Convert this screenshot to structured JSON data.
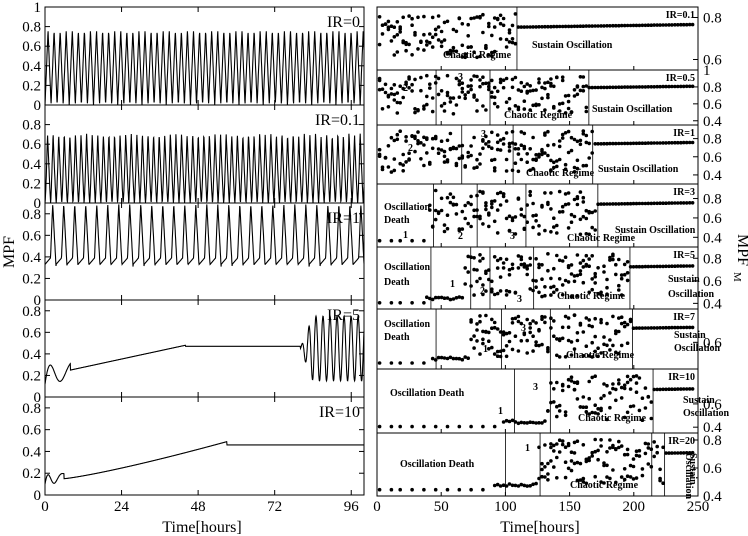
{
  "figure": {
    "left_ylabel": "MPF",
    "right_ylabel_main": "MPF",
    "right_ylabel_sub": "M",
    "left_xlabel": "Time[hours]",
    "right_xlabel": "Time[hours]"
  },
  "chart_data": [
    {
      "type": "line",
      "panel": "left",
      "x_ticks": [
        "0",
        "24",
        "48",
        "72",
        "96"
      ],
      "xlim": [
        0,
        100
      ],
      "xlabel": "Time[hours]",
      "ylabel": "MPF",
      "series": [
        {
          "label": "IR=0",
          "ylim": [
            0,
            1
          ],
          "y_ticks": [
            "0",
            "0.2",
            "0.4",
            "0.6",
            "0.8",
            "1"
          ],
          "behavior": "sustained oscillation, ~53 peaks up to 0.76"
        },
        {
          "label": "IR=0.1",
          "ylim": [
            0,
            1
          ],
          "y_ticks": [
            "0",
            "0.2",
            "0.4",
            "0.6",
            "0.8"
          ],
          "behavior": "irregular oscillation, peaks 0.6-0.75"
        },
        {
          "label": "IR=1",
          "ylim": [
            0,
            0.9
          ],
          "y_ticks": [
            "0",
            "0.2",
            "0.4",
            "0.6",
            "0.8"
          ],
          "behavior": "spiky oscillation, peaks ~0.9, troughs ~0.3"
        },
        {
          "label": "IR=5",
          "ylim": [
            0,
            0.9
          ],
          "y_ticks": [
            "0",
            "0.2",
            "0.4",
            "0.6",
            "0.8"
          ],
          "behavior": "slow rise to 0.48 then plateau 0.46, oscillation resumes after ~80h"
        },
        {
          "label": "IR=10",
          "ylim": [
            0,
            0.9
          ],
          "y_ticks": [
            "0",
            "0.2",
            "0.4",
            "0.6",
            "0.8"
          ],
          "behavior": "slow rise to 0.49 at ~57h then plateau 0.46"
        }
      ]
    },
    {
      "type": "scatter",
      "panel": "right",
      "x_ticks": [
        "0",
        "50",
        "100",
        "150",
        "200",
        "250"
      ],
      "xlim": [
        0,
        250
      ],
      "xlabel": "Time[hours]",
      "ylabel": "MPF_M",
      "series": [
        {
          "label": "IR=0.1",
          "y_ticks": [
            "0.6",
            "0.8"
          ],
          "ylim": [
            0.55,
            0.85
          ],
          "dividers": [
            109
          ],
          "regions": [
            {
              "text": "Chaotic Regime"
            },
            {
              "text": "Sustain Oscillation"
            }
          ]
        },
        {
          "label": "IR=0.5",
          "y_ticks": [
            "0.4",
            "0.6",
            "0.8",
            "1"
          ],
          "ylim": [
            0.35,
            1.0
          ],
          "dividers": [
            46,
            88,
            165
          ],
          "regions": [
            {
              "text": "2"
            },
            {
              "text": "3"
            },
            {
              "text": "Chaotic Regime"
            },
            {
              "text": "Sustain Oscillation"
            }
          ]
        },
        {
          "label": "IR=1",
          "y_ticks": [
            "0.4",
            "0.6",
            "0.8"
          ],
          "ylim": [
            0.3,
            0.95
          ],
          "dividers": [
            66,
            106,
            168
          ],
          "regions": [
            {
              "text": "2"
            },
            {
              "text": "3"
            },
            {
              "text": "Chaotic Regime"
            },
            {
              "text": "Sustain Oscillation"
            }
          ]
        },
        {
          "label": "IR=3",
          "y_ticks": [
            "0.4",
            "0.6",
            "0.8"
          ],
          "ylim": [
            0.3,
            0.95
          ],
          "dividers": [
            44,
            78,
            116,
            172
          ],
          "regions": [
            {
              "text": "Oscillation"
            },
            {
              "text": "Death"
            },
            {
              "text": "1"
            },
            {
              "text": "2"
            },
            {
              "text": "3"
            },
            {
              "text": "Chaotic Regime"
            },
            {
              "text": "Sustain Oscillation"
            }
          ]
        },
        {
          "label": "IR=5",
          "y_ticks": [
            "0.4",
            "0.6",
            "0.8"
          ],
          "ylim": [
            0.35,
            0.9
          ],
          "dividers": [
            42,
            73,
            88,
            122,
            197
          ],
          "regions": [
            {
              "text": "Oscillation"
            },
            {
              "text": "Death"
            },
            {
              "text": "1"
            },
            {
              "text": "2"
            },
            {
              "text": "3"
            },
            {
              "text": "Chaotic Regime"
            },
            {
              "text": "Sustain"
            },
            {
              "text": "Oscillation"
            }
          ]
        },
        {
          "label": "IR=7",
          "y_ticks": [
            "0.6"
          ],
          "ylim": [
            0.4,
            0.85
          ],
          "dividers": [
            46,
            97,
            135,
            199
          ],
          "regions": [
            {
              "text": "Oscillation"
            },
            {
              "text": "Death"
            },
            {
              "text": "1"
            },
            {
              "text": "3"
            },
            {
              "text": "Chaotic Regime"
            },
            {
              "text": "Sustain"
            },
            {
              "text": "Oscillation"
            }
          ]
        },
        {
          "label": "IR=10",
          "y_ticks": [
            "0.4",
            "0.6"
          ],
          "ylim": [
            0.35,
            0.9
          ],
          "dividers": [
            107,
            135,
            215
          ],
          "regions": [
            {
              "text": "Oscillation Death"
            },
            {
              "text": "1"
            },
            {
              "text": "3"
            },
            {
              "text": "Chaotic Regime"
            },
            {
              "text": "Sustain"
            },
            {
              "text": "Oscillation"
            }
          ]
        },
        {
          "label": "IR=20",
          "y_ticks": [
            "0.4",
            "0.6",
            "0.8"
          ],
          "ylim": [
            0.4,
            0.85
          ],
          "dividers": [
            100,
            127,
            214,
            224
          ],
          "regions": [
            {
              "text": "Oscillation Death"
            },
            {
              "text": "1"
            },
            {
              "text": "Chaotic Regime"
            },
            {
              "text": "Sustain"
            },
            {
              "text": "Oscillation"
            }
          ]
        }
      ]
    }
  ]
}
